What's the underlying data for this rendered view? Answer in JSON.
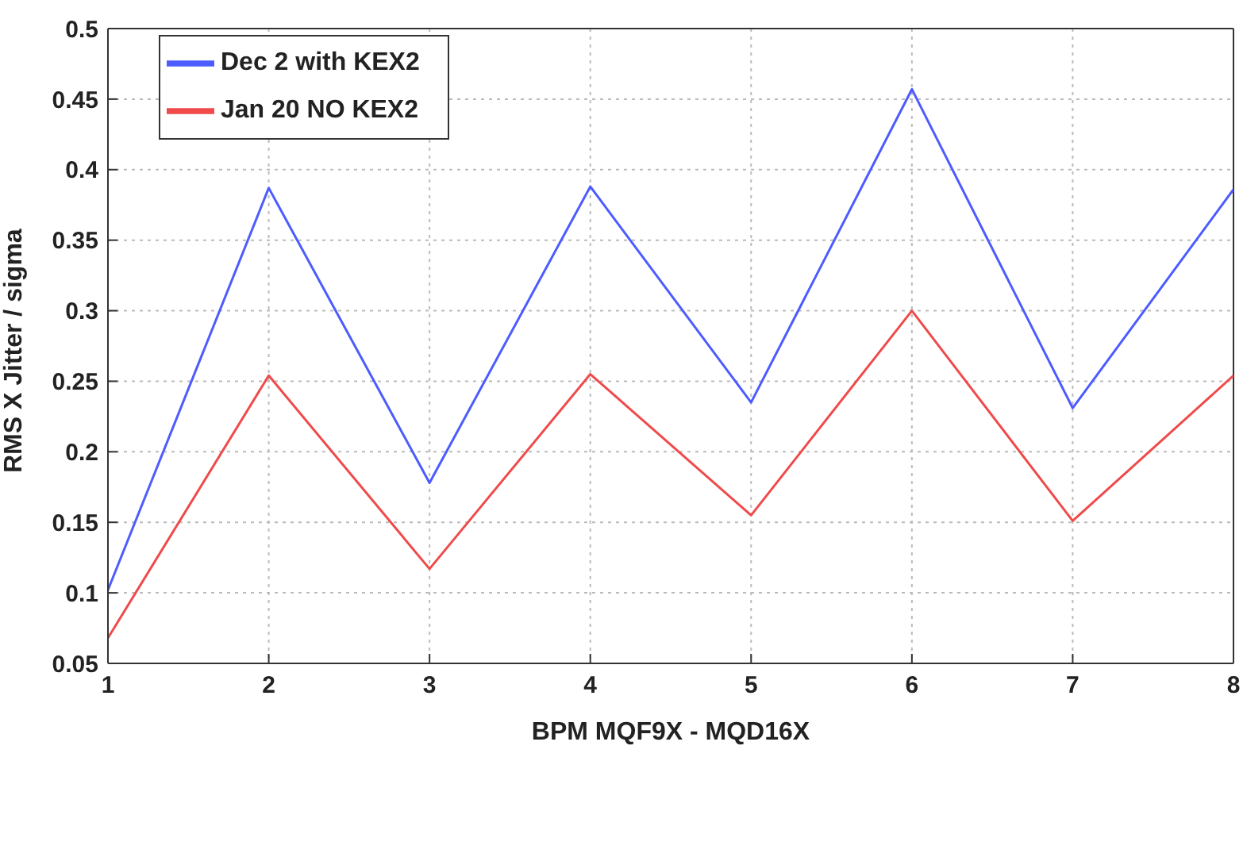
{
  "chart_data": {
    "type": "line",
    "xlabel": "BPM MQF9X - MQD16X",
    "ylabel": "RMS X Jitter / sigma",
    "x": [
      1,
      2,
      3,
      4,
      5,
      6,
      7,
      8
    ],
    "series": [
      {
        "name": "Dec 2 with KEX2",
        "color": "#4d5cff",
        "values": [
          0.102,
          0.387,
          0.178,
          0.388,
          0.235,
          0.457,
          0.231,
          0.386
        ]
      },
      {
        "name": "Jan 20 NO KEX2",
        "color": "#f04a4a",
        "values": [
          0.068,
          0.254,
          0.117,
          0.255,
          0.155,
          0.3,
          0.151,
          0.254
        ]
      }
    ],
    "xlim": [
      1,
      8
    ],
    "xticks": [
      1,
      2,
      3,
      4,
      5,
      6,
      7,
      8
    ],
    "ylim": [
      0.05,
      0.5
    ],
    "yticks": [
      0.05,
      0.1,
      0.15,
      0.2,
      0.25,
      0.3,
      0.35,
      0.4,
      0.45,
      0.5
    ],
    "grid": true,
    "legend": "top left",
    "marker": "none",
    "line_style": "solid"
  }
}
